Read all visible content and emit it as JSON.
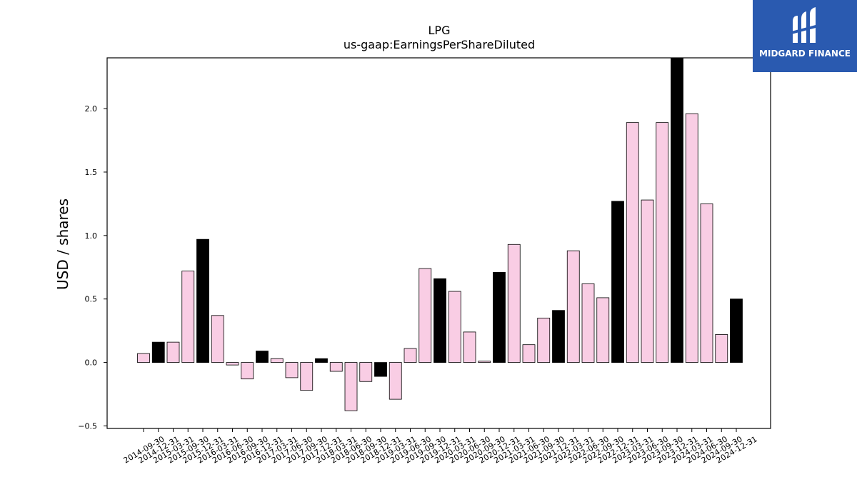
{
  "chart_data": {
    "type": "bar",
    "title": "LPG",
    "subtitle": "us-gaap:EarningsPerShareDiluted",
    "xlabel": "",
    "ylabel": "USD / shares",
    "ylim": [
      -0.52,
      2.4
    ],
    "yticks": [
      -0.5,
      0.0,
      0.5,
      1.0,
      1.5,
      2.0
    ],
    "ytick_labels": [
      "−0.5",
      "0.0",
      "0.5",
      "1.0",
      "1.5",
      "2.0"
    ],
    "grid": false,
    "colors": {
      "quarter": "#f9cde4",
      "annual": "#000000",
      "edge": "#000000"
    },
    "categories": [
      "2014-09-30",
      "2014-12-31",
      "2015-03-31",
      "2015-09-30",
      "2015-12-31",
      "2016-03-31",
      "2016-06-30",
      "2016-09-30",
      "2016-12-31",
      "2017-03-31",
      "2017-06-30",
      "2017-09-30",
      "2017-12-31",
      "2018-03-31",
      "2018-06-30",
      "2018-09-30",
      "2018-12-31",
      "2019-03-31",
      "2019-06-30",
      "2019-09-30",
      "2019-12-31",
      "2020-03-31",
      "2020-06-30",
      "2020-09-30",
      "2020-12-31",
      "2021-03-31",
      "2021-06-30",
      "2021-09-30",
      "2021-12-31",
      "2022-03-31",
      "2022-06-30",
      "2022-09-30",
      "2022-12-31",
      "2023-03-31",
      "2023-06-30",
      "2023-09-30",
      "2023-12-31",
      "2024-03-31",
      "2024-06-30",
      "2024-09-30",
      "2024-12-31"
    ],
    "values": [
      0.07,
      0.16,
      0.16,
      0.72,
      0.97,
      0.37,
      -0.02,
      -0.13,
      0.09,
      0.03,
      -0.12,
      -0.22,
      0.03,
      -0.07,
      -0.38,
      -0.15,
      -0.11,
      -0.29,
      0.11,
      0.74,
      0.66,
      0.56,
      0.24,
      0.01,
      0.71,
      0.93,
      0.14,
      0.35,
      0.41,
      0.88,
      0.62,
      0.51,
      1.27,
      1.89,
      1.28,
      1.89,
      2.4,
      1.96,
      1.25,
      0.22,
      0.5
    ],
    "annual": [
      false,
      true,
      false,
      false,
      true,
      false,
      false,
      false,
      true,
      false,
      false,
      false,
      true,
      false,
      false,
      false,
      true,
      false,
      false,
      false,
      true,
      false,
      false,
      false,
      true,
      false,
      false,
      false,
      true,
      false,
      false,
      false,
      true,
      false,
      false,
      false,
      true,
      false,
      false,
      false,
      true
    ]
  },
  "logo": {
    "text": "MIDGARD FINANCE",
    "icon": "midgard-logo-icon"
  }
}
